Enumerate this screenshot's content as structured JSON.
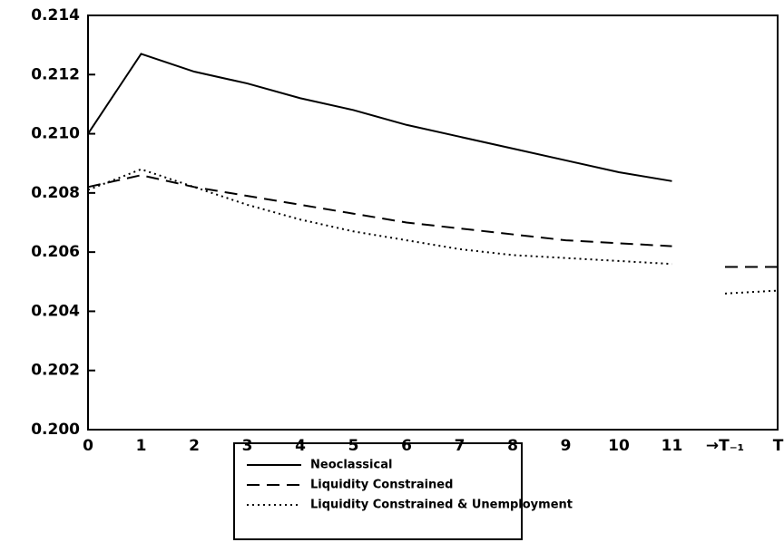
{
  "chart_data": {
    "type": "line",
    "categories": [
      "0",
      "1",
      "2",
      "3",
      "4",
      "5",
      "6",
      "7",
      "8",
      "9",
      "10",
      "11",
      "→T₋₁",
      "T"
    ],
    "series": [
      {
        "name": "Neoclassical",
        "color": "#000000",
        "dash": "solid",
        "values": [
          0.21,
          0.2127,
          0.2121,
          0.2117,
          0.2112,
          0.2108,
          0.2103,
          0.2099,
          0.2095,
          0.2091,
          0.2087,
          0.2084,
          null,
          null
        ]
      },
      {
        "name": "Liquidity Constrained",
        "color": "#000000",
        "dash": "dashed",
        "values": [
          0.2082,
          0.2086,
          0.2082,
          0.2079,
          0.2076,
          0.2073,
          0.207,
          0.2068,
          0.2066,
          0.2064,
          0.2063,
          0.2062,
          0.2055,
          0.2055
        ]
      },
      {
        "name": "Liquidity Constrained & Unemployment",
        "color": "#000000",
        "dash": "dotted",
        "values": [
          0.2081,
          0.2088,
          0.2082,
          0.2076,
          0.2071,
          0.2067,
          0.2064,
          0.2061,
          0.2059,
          0.2058,
          0.2057,
          0.2056,
          0.2046,
          0.2047
        ]
      }
    ],
    "ylim": [
      0.2,
      0.214
    ],
    "yticks": [
      {
        "value": 0.2,
        "label": "0.200"
      },
      0.202,
      0.204,
      0.206,
      0.208,
      {
        "value": 0.21,
        "label": "0.210"
      },
      0.212,
      0.214
    ],
    "broken_axis": true,
    "legend": "bottom"
  }
}
